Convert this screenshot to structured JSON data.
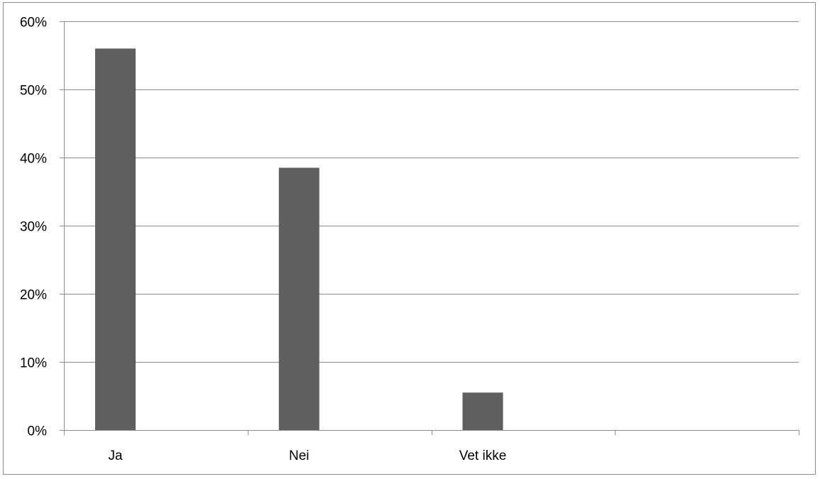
{
  "colors": {
    "bar": "#5f5f5f",
    "gridline": "#8c8c8c",
    "axis": "#8c8c8c",
    "background": "#ffffff"
  },
  "chart_data": {
    "type": "bar",
    "title": "",
    "xlabel": "",
    "ylabel": "",
    "categories": [
      "Ja",
      "Nei",
      "Vet ikke"
    ],
    "empty_category_slots": 1,
    "values": [
      0.56,
      0.385,
      0.055
    ],
    "ylim": [
      0,
      0.6
    ],
    "yticks": [
      0,
      0.1,
      0.2,
      0.3,
      0.4,
      0.5,
      0.6
    ],
    "ytick_labels": [
      "0%",
      "10%",
      "20%",
      "30%",
      "40%",
      "50%",
      "60%"
    ],
    "grid": true,
    "legend": "none"
  }
}
